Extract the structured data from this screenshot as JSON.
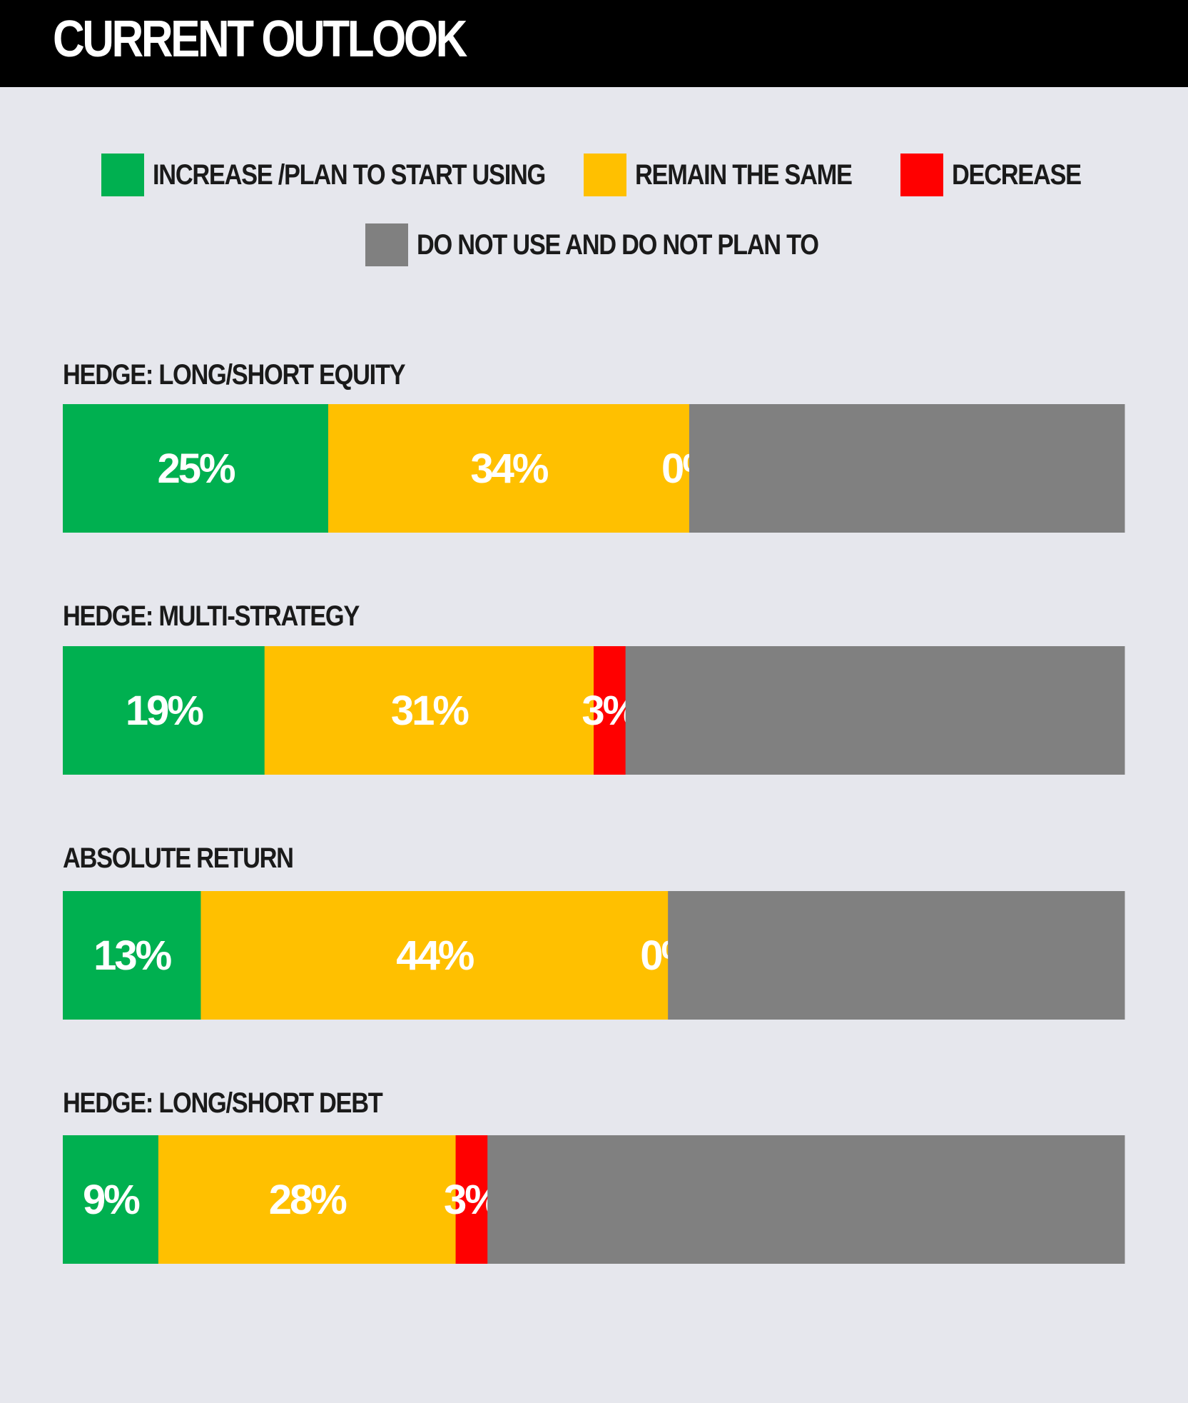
{
  "header": {
    "title": "CURRENT OUTLOOK"
  },
  "legend": [
    {
      "key": "increase",
      "label": "INCREASE /PLAN TO START USING",
      "color": "#00b050"
    },
    {
      "key": "same",
      "label": "REMAIN THE SAME",
      "color": "#ffc000"
    },
    {
      "key": "decrease",
      "label": "DECREASE",
      "color": "#ff0000"
    },
    {
      "key": "notuse",
      "label": "DO NOT USE AND DO NOT PLAN TO",
      "color": "#808080"
    }
  ],
  "chart_data": {
    "type": "bar",
    "orientation": "horizontal",
    "stacked": true,
    "normalized": true,
    "title": "CURRENT OUTLOOK",
    "categories": [
      "HEDGE: LONG/SHORT EQUITY",
      "HEDGE: MULTI-STRATEGY",
      "ABSOLUTE RETURN",
      "HEDGE: LONG/SHORT DEBT"
    ],
    "series": [
      {
        "name": "INCREASE /PLAN TO START USING",
        "color": "#00b050",
        "values": [
          25,
          19,
          13,
          9
        ],
        "labels": [
          "25%",
          "19%",
          "13%",
          "9%"
        ]
      },
      {
        "name": "REMAIN THE SAME",
        "color": "#ffc000",
        "values": [
          34,
          31,
          44,
          28
        ],
        "labels": [
          "34%",
          "31%",
          "44%",
          "28%"
        ]
      },
      {
        "name": "DECREASE",
        "color": "#ff0000",
        "values": [
          0,
          3,
          0,
          3
        ],
        "labels": [
          "0%",
          "3%",
          "0%",
          "3%"
        ]
      },
      {
        "name": "DO NOT USE AND DO NOT PLAN TO",
        "color": "#808080",
        "values": [
          41,
          47,
          43,
          60
        ]
      }
    ],
    "grid": false,
    "legend_position": "top"
  }
}
